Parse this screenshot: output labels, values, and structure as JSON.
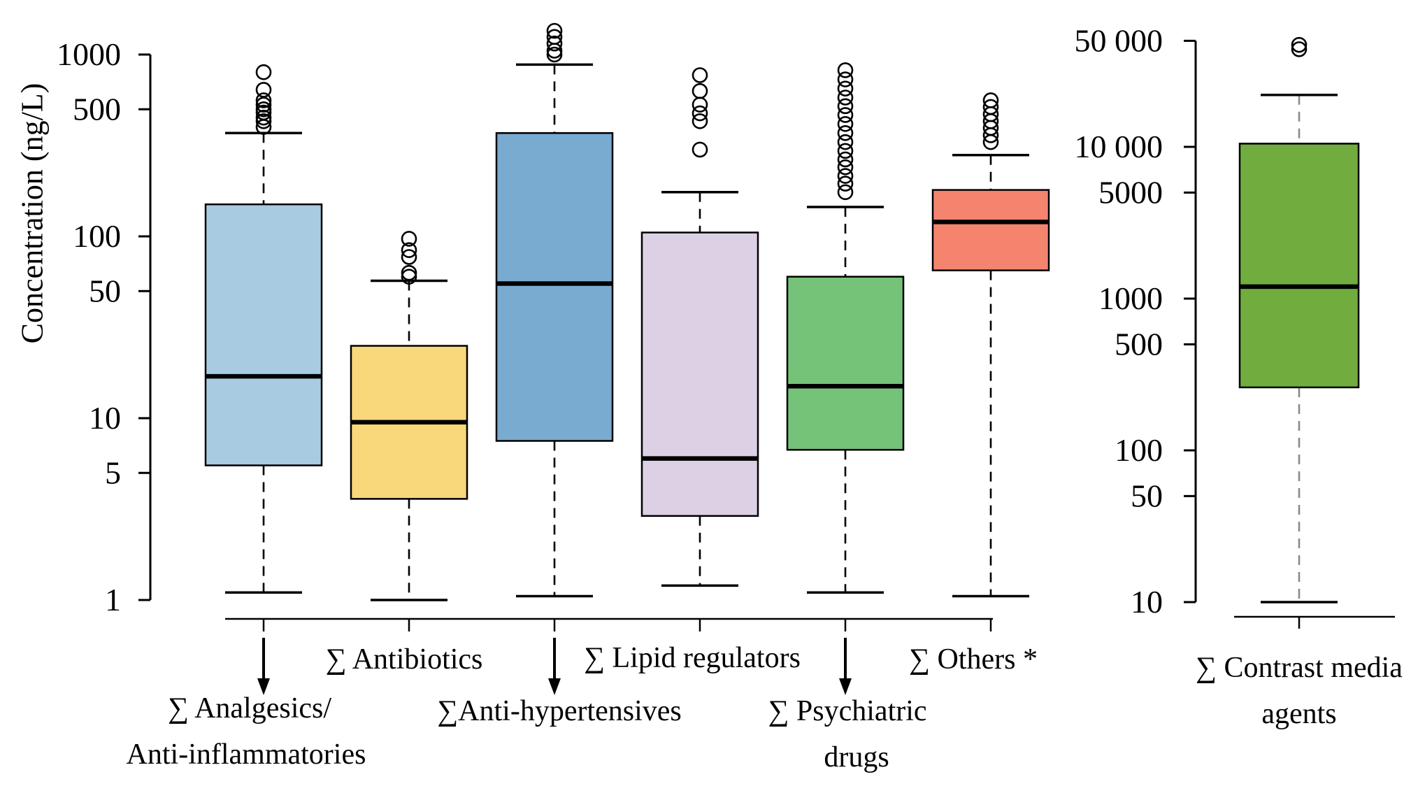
{
  "chart_data": {
    "type": "boxplot",
    "scale": "log",
    "ylabel": "Concentration (ng/L)",
    "grid": false,
    "legend": false,
    "panels": [
      {
        "id": "pharmaceuticals",
        "ylim": [
          1,
          1400
        ],
        "yticks": [
          {
            "label": "1000",
            "value": 1000
          },
          {
            "label": "500",
            "value": 500
          },
          {
            "label": "100",
            "value": 100
          },
          {
            "label": "50",
            "value": 50
          },
          {
            "label": "10",
            "value": 10
          },
          {
            "label": "5",
            "value": 5
          },
          {
            "label": "1",
            "value": 1
          }
        ],
        "series": [
          {
            "label": "∑ Analgesics/ Anti-inflammatories",
            "label_lines": [
              "∑ Analgesics/",
              "Anti-inflammatories"
            ],
            "color": "#a9cbe2",
            "whisker_low": 1.1,
            "q1": 5.5,
            "median": 17,
            "q3": 150,
            "whisker_high": 370,
            "outliers": [
              400,
              430,
              450,
              480,
              500,
              530,
              560,
              640,
              800
            ]
          },
          {
            "label": "∑ Antibiotics",
            "label_lines": [
              "∑ Antibiotics"
            ],
            "color": "#f9d77b",
            "whisker_low": 1.0,
            "q1": 3.6,
            "median": 9.5,
            "q3": 25,
            "whisker_high": 57,
            "outliers": [
              60,
              63,
              77,
              84,
              97
            ]
          },
          {
            "label": "∑Anti-hypertensives",
            "label_lines": [
              "∑Anti-hypertensives"
            ],
            "color": "#79abd0",
            "whisker_low": 1.05,
            "q1": 7.5,
            "median": 55,
            "q3": 370,
            "whisker_high": 880,
            "outliers": [
              1000,
              1050,
              1150,
              1250,
              1350
            ]
          },
          {
            "label": "∑ Lipid regulators",
            "label_lines": [
              "∑ Lipid regulators"
            ],
            "color": "#dcd0e4",
            "whisker_low": 1.2,
            "q1": 2.9,
            "median": 6,
            "q3": 105,
            "whisker_high": 175,
            "outliers": [
              300,
              430,
              475,
              530,
              630,
              770
            ]
          },
          {
            "label": "∑ Psychiatric drugs",
            "label_lines": [
              "∑ Psychiatric",
              "drugs"
            ],
            "color": "#75c378",
            "whisker_low": 1.1,
            "q1": 6.7,
            "median": 15,
            "q3": 60,
            "whisker_high": 145,
            "outliers": [
              175,
              195,
              215,
              240,
              265,
              295,
              330,
              370,
              415,
              465,
              520,
              580,
              650,
              730,
              820
            ]
          },
          {
            "label": "∑ Others *",
            "label_lines": [
              "∑ Others *"
            ],
            "color": "#f5846f",
            "whisker_low": 1.05,
            "q1": 65,
            "median": 120,
            "q3": 180,
            "whisker_high": 280,
            "outliers": [
              330,
              360,
              395,
              430,
              470,
              515,
              560
            ]
          }
        ]
      },
      {
        "id": "contrast-media",
        "ylim": [
          10,
          50000
        ],
        "yticks": [
          {
            "label": "50 000",
            "value": 50000
          },
          {
            "label": "10 000",
            "value": 10000
          },
          {
            "label": "5000",
            "value": 5000
          },
          {
            "label": "1000",
            "value": 1000
          },
          {
            "label": "500",
            "value": 500
          },
          {
            "label": "100",
            "value": 100
          },
          {
            "label": "50",
            "value": 50
          },
          {
            "label": "10",
            "value": 10
          }
        ],
        "series": [
          {
            "label": "∑ Contrast media agents",
            "label_lines": [
              "∑ Contrast media",
              "agents"
            ],
            "color": "#70ad3e",
            "whisker_low": 10,
            "q1": 260,
            "median": 1200,
            "q3": 10500,
            "whisker_high": 22000,
            "outliers": [
              44000,
              47000
            ]
          }
        ]
      }
    ]
  }
}
